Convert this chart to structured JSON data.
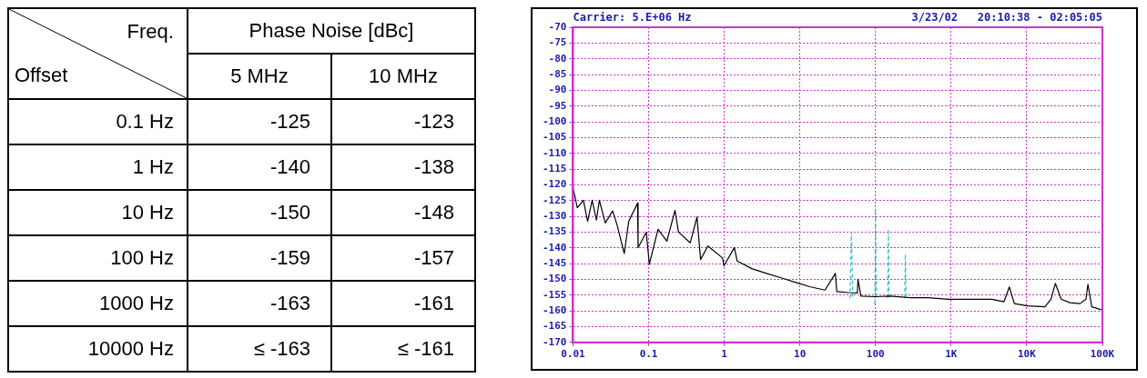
{
  "chart_data": [
    {
      "type": "heatmap",
      "title": "Phase Noise [dBc]",
      "xlabel": "Freq.",
      "ylabel": "Offset",
      "categories": [
        "5 MHz",
        "10 MHz"
      ],
      "y_categories": [
        "0.1 Hz",
        "1 Hz",
        "10 Hz",
        "100 Hz",
        "1000 Hz",
        "10000 Hz"
      ],
      "cells": [
        [
          -125,
          -123
        ],
        [
          -140,
          -138
        ],
        [
          -150,
          -148
        ],
        [
          -159,
          -157
        ],
        [
          -163,
          -161
        ],
        [
          null,
          null
        ]
      ],
      "cell_labels": [
        [
          "-125",
          "-123"
        ],
        [
          "-140",
          "-138"
        ],
        [
          "-150",
          "-148"
        ],
        [
          "-159",
          "-157"
        ],
        [
          "-163",
          "-161"
        ],
        [
          "≤ -163",
          "≤ -161"
        ]
      ]
    },
    {
      "type": "line",
      "title": "Carrier: 5.E+06 Hz",
      "subtitle": "3/23/02   20:10:38 - 02:05:05",
      "log": "x",
      "xlim": [
        0.01,
        100000
      ],
      "xticks": [
        0.01,
        0.1,
        1,
        10,
        100,
        {
          "value": 1000,
          "label": "1K"
        },
        {
          "value": 10000,
          "label": "10K"
        },
        {
          "value": 100000,
          "label": "100K"
        }
      ],
      "ylim": [
        -170,
        -70
      ],
      "yticks": [
        -170,
        -165,
        -160,
        -155,
        -150,
        -145,
        -140,
        -135,
        -130,
        -125,
        -120,
        -115,
        -110,
        -105,
        -100,
        -95,
        -90,
        -85,
        -80,
        -75,
        -70
      ],
      "grid": true,
      "legend": false,
      "marker": "none",
      "series": [
        {
          "color": "#000000",
          "line_style": "solid",
          "x": [
            0.01,
            0.0114,
            0.0137,
            0.0156,
            0.0179,
            0.0204,
            0.0223,
            0.0267,
            0.0334,
            0.0381,
            0.0476,
            0.0545,
            0.0713,
            0.0725,
            0.0931,
            0.102,
            0.133,
            0.174,
            0.223,
            0.248,
            0.355,
            0.436,
            0.486,
            0.607,
            0.948,
            0.99,
            1.36,
            1.48,
            2.31,
            3.61,
            5.65,
            8.83,
            13.8,
            21.5,
            29.4,
            30.8,
            44,
            57.5,
            58.6,
            64.1,
            100,
            156,
            291,
            496,
            925,
            1725,
            3470,
            5000,
            5880,
            6850,
            10200,
            17400,
            20900,
            23900,
            28500,
            37200,
            50600,
            60600,
            64400,
            72400,
            99000
          ],
          "values": [
            -121,
            -127.3,
            -124.9,
            -131.6,
            -124.9,
            -131.2,
            -124.9,
            -132.1,
            -128.3,
            -132.6,
            -141.8,
            -131.6,
            -125.8,
            -139.9,
            -135,
            -145.2,
            -134.1,
            -137.9,
            -128.1,
            -135,
            -138.4,
            -130.2,
            -143.7,
            -139.4,
            -143.2,
            -145.7,
            -139.9,
            -144.2,
            -146.6,
            -148.1,
            -149.5,
            -151,
            -152.4,
            -153.4,
            -148.1,
            -153.9,
            -154.2,
            -154.3,
            -150,
            -155.3,
            -155.5,
            -155.3,
            -155.8,
            -155.8,
            -156.3,
            -156.3,
            -156.3,
            -157.1,
            -152.4,
            -157.7,
            -158.4,
            -158.7,
            -156.3,
            -151.3,
            -156.3,
            -157.4,
            -157.7,
            -156.3,
            -151.6,
            -158.7,
            -159.7
          ]
        },
        {
          "color": "#33c0c8",
          "line_style": "dashed",
          "x": [
            46,
            48,
            50,
            70,
            98,
            100,
            102,
            120,
            145,
            148,
            151,
            200,
            243,
            248,
            253
          ],
          "values": [
            -156,
            -135,
            -156,
            null,
            -158,
            -128,
            -156,
            null,
            -156,
            -134,
            -156,
            null,
            -156,
            -142,
            -156
          ]
        }
      ]
    }
  ]
}
